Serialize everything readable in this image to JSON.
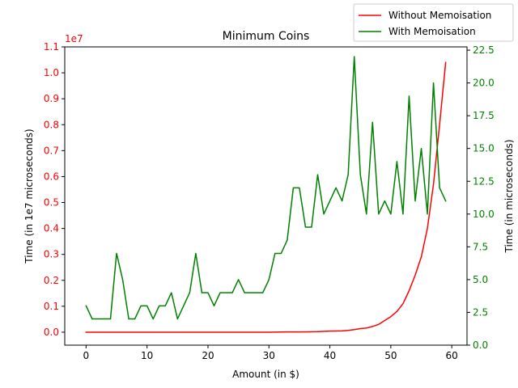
{
  "chart_data": {
    "type": "line",
    "title": "Minimum Coins",
    "xlabel": "Amount (in $)",
    "ylabel_left": "Time (in 1e7 microseconds)",
    "ylabel_right": "Time (in microseconds)",
    "left_axis_multiplier": "1e7",
    "xlim": [
      -3.5,
      62.5
    ],
    "ylim_left": [
      -0.05,
      1.1
    ],
    "ylim_right": [
      0,
      22.75
    ],
    "x_ticks": [
      0,
      10,
      20,
      30,
      40,
      50,
      60
    ],
    "y_ticks_left": [
      0.0,
      0.1,
      0.2,
      0.3,
      0.4,
      0.5,
      0.6,
      0.7,
      0.8,
      0.9,
      1.0,
      1.1
    ],
    "y_ticks_right": [
      0.0,
      2.5,
      5.0,
      7.5,
      10.0,
      12.5,
      15.0,
      17.5,
      20.0,
      22.5
    ],
    "legend_position": "top-right, outside plot",
    "grid": false,
    "series": [
      {
        "name": "Without Memoisation",
        "axis": "left",
        "color": "#ff0000",
        "x": [
          0,
          5,
          10,
          15,
          20,
          25,
          30,
          33,
          35,
          38,
          40,
          42,
          43,
          44,
          45,
          46,
          47,
          48,
          49,
          50,
          51,
          52,
          53,
          54,
          55,
          56,
          57,
          58,
          59
        ],
        "values": [
          0.0,
          0.0,
          0.0,
          0.0,
          0.0,
          0.0,
          0.0,
          0.001,
          0.001,
          0.002,
          0.004,
          0.005,
          0.007,
          0.01,
          0.014,
          0.016,
          0.022,
          0.03,
          0.045,
          0.06,
          0.08,
          0.11,
          0.16,
          0.22,
          0.29,
          0.4,
          0.57,
          0.8,
          1.04
        ]
      },
      {
        "name": "With Memoisation",
        "axis": "right",
        "color": "#008000",
        "x": [
          0,
          1,
          2,
          3,
          4,
          5,
          6,
          7,
          8,
          9,
          10,
          11,
          12,
          13,
          14,
          15,
          16,
          17,
          18,
          19,
          20,
          21,
          22,
          23,
          24,
          25,
          26,
          27,
          28,
          29,
          30,
          31,
          32,
          33,
          34,
          35,
          36,
          37,
          38,
          39,
          40,
          41,
          42,
          43,
          44,
          45,
          46,
          47,
          48,
          49,
          50,
          51,
          52,
          53,
          54,
          55,
          56,
          57,
          58,
          59
        ],
        "values": [
          3,
          2,
          2,
          2,
          2,
          7,
          5,
          2,
          2,
          3,
          3,
          2,
          3,
          3,
          4,
          2,
          3,
          4,
          7,
          4,
          4,
          3,
          4,
          4,
          4,
          5,
          4,
          4,
          4,
          4,
          5,
          7,
          7,
          8,
          12,
          12,
          9,
          9,
          13,
          10,
          11,
          12,
          11,
          13,
          22,
          13,
          10,
          17,
          10,
          11,
          10,
          14,
          10,
          19,
          11,
          15,
          10,
          20,
          12,
          11
        ]
      }
    ]
  }
}
